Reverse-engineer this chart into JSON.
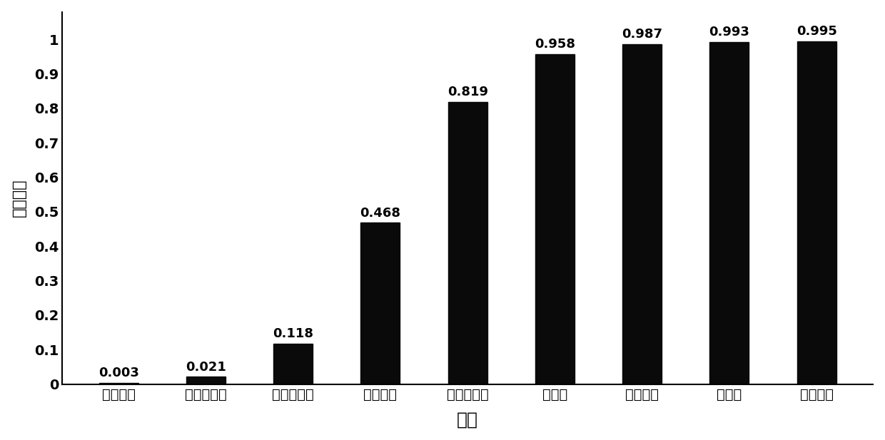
{
  "categories": [
    "热风温度",
    "透气性系数",
    "上炉硅含量",
    "富氧压力",
    "炉腹煤气量",
    "全压差",
    "冷风压力",
    "富氧率",
    "鼓风动能"
  ],
  "values": [
    0.003,
    0.021,
    0.118,
    0.468,
    0.819,
    0.958,
    0.987,
    0.993,
    0.995
  ],
  "bar_color": "#0a0a0a",
  "ylabel": "正域大小",
  "xlabel": "变量",
  "ylim": [
    0,
    1.08
  ],
  "yticks": [
    0,
    0.1,
    0.2,
    0.3,
    0.4,
    0.5,
    0.6,
    0.7,
    0.8,
    0.9,
    1
  ],
  "ytick_labels": [
    "0",
    "0.1",
    "0.2",
    "0.3",
    "0.4",
    "0.5",
    "0.6",
    "0.7",
    "0.8",
    "0.9",
    "1"
  ],
  "bar_width": 0.45,
  "label_fontsize": 16,
  "tick_fontsize": 14,
  "value_fontsize": 13,
  "xlabel_fontsize": 18,
  "background_color": "#ffffff"
}
